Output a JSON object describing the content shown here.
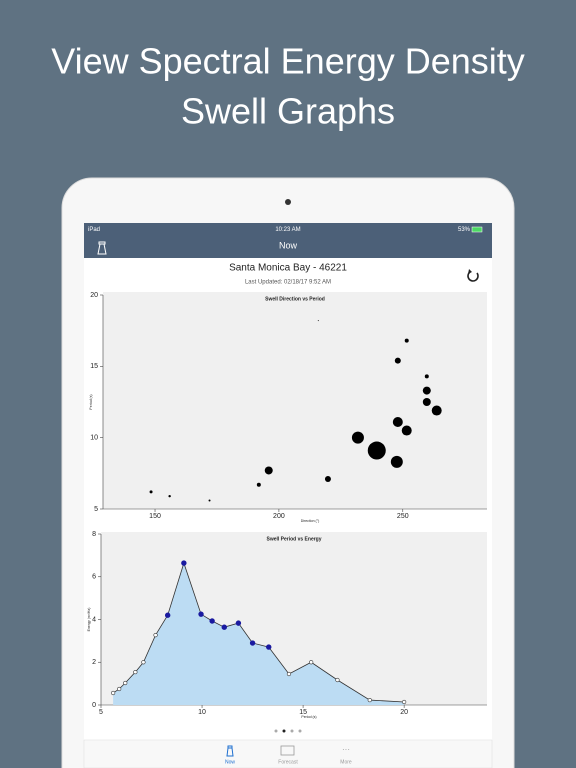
{
  "headline": {
    "line1": "View Spectral Energy Density",
    "line2": "Swell Graphs"
  },
  "status_bar": {
    "device": "iPad",
    "time": "10:23 AM",
    "battery": "53%"
  },
  "nav": {
    "title": "Now"
  },
  "station": {
    "name": "Santa Monica Bay - 46221",
    "updated": "Last Updated: 02/18/17 9:52 AM"
  },
  "tabs": [
    "Now",
    "Forecast",
    "More"
  ],
  "chart_data": [
    {
      "type": "scatter",
      "title": "Swell Direction vs Period",
      "x_label": "Direction (°)",
      "y_label": "Period (s)",
      "x": [
        148.4,
        155.9,
        172,
        191.9,
        195.9,
        219.8,
        215.9,
        231.9,
        239.5,
        247.6,
        248,
        251.6,
        248,
        251.6,
        259.7,
        259.7,
        259.7,
        263.7
      ],
      "values": [
        6.2,
        5.9,
        5.6,
        6.7,
        7.7,
        7.1,
        18.2,
        10.0,
        9.1,
        8.3,
        11.1,
        10.5,
        15.4,
        16.8,
        14.3,
        13.3,
        12.5,
        11.9
      ],
      "sizes": [
        1.5,
        1.2,
        1,
        2,
        4,
        3,
        0.5,
        6,
        9,
        6,
        5,
        5,
        3,
        2,
        2,
        4,
        4,
        5
      ],
      "color": "#000000",
      "xlim": [
        129,
        284
      ],
      "xticks": [
        150,
        200,
        250
      ],
      "ylim": [
        5,
        20
      ],
      "yticks": [
        5,
        10,
        15,
        20
      ]
    },
    {
      "type": "line",
      "title": "Swell Period vs Energy",
      "x_label": "Period (s)",
      "y_label": "Energy (m²/Hz)",
      "x": [
        5.6,
        5.9,
        6.2,
        6.7,
        7.1,
        7.7,
        8.3,
        9.1,
        9.95,
        10.5,
        11.1,
        11.8,
        12.5,
        13.3,
        14.3,
        15.4,
        16.7,
        18.3,
        20.0
      ],
      "values": [
        0.56,
        0.75,
        1.03,
        1.54,
        2.0,
        3.27,
        4.2,
        6.64,
        4.25,
        3.93,
        3.64,
        3.83,
        2.9,
        2.71,
        1.45,
        2.0,
        1.17,
        0.23,
        0.14
      ],
      "highlighted": [
        false,
        false,
        false,
        false,
        false,
        false,
        true,
        true,
        true,
        true,
        true,
        true,
        true,
        true,
        false,
        false,
        false,
        false,
        false
      ],
      "color": "#333333",
      "area_color": "#bcdcf3",
      "highlight_color": "#1a1aa0",
      "xlim": [
        5,
        24.1
      ],
      "xticks": [
        5,
        10,
        15,
        20
      ],
      "ylim": [
        0,
        8
      ],
      "yticks": [
        0,
        2,
        4,
        6,
        8
      ]
    }
  ]
}
